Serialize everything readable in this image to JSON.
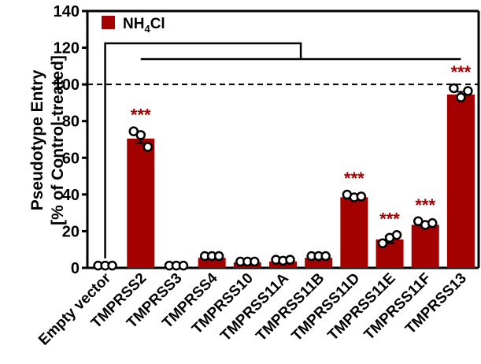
{
  "chart_data": {
    "type": "bar",
    "ylabel_line1": "Pseudotype Entry",
    "ylabel_line2": "[% of Control-treated]",
    "ylim": [
      0,
      140
    ],
    "yticks": [
      "0",
      "20",
      "40",
      "60",
      "80",
      "100",
      "120",
      "140"
    ],
    "legend": {
      "label": "NH",
      "sub": "4",
      "suffix": "Cl",
      "position": "top-left"
    },
    "reference_line": 100,
    "bar_color": "#a30000",
    "significance_color": "#a30000",
    "categories": [
      "Empty vector",
      "TMPRSS2",
      "TMPRSS3",
      "TMPRSS4",
      "TMPRSS10",
      "TMPRSS11A",
      "TMPRSS11B",
      "TMPRSS11D",
      "TMPRSS11E",
      "TMPRSS11F",
      "TMPRSS13"
    ],
    "values": [
      0,
      70.5,
      0,
      5.5,
      3,
      3.5,
      5.5,
      38.5,
      15.5,
      23.5,
      94.5
    ],
    "errors": [
      0,
      2.5,
      0,
      0.5,
      0.3,
      0.5,
      0.5,
      0.8,
      2.0,
      1.0,
      1.5
    ],
    "points": [
      [
        0.8,
        0.8,
        0.8
      ],
      [
        74,
        72,
        65.5
      ],
      [
        0.8,
        0.8,
        0.8
      ],
      [
        6,
        6,
        6
      ],
      [
        3,
        3,
        3
      ],
      [
        4,
        3.5,
        4
      ],
      [
        6,
        6,
        6
      ],
      [
        39.5,
        38,
        38.5
      ],
      [
        13,
        16,
        17.5
      ],
      [
        25,
        23,
        24
      ],
      [
        97.5,
        92.5,
        96
      ]
    ],
    "significance": [
      "",
      "***",
      "",
      "",
      "",
      "",
      "",
      "***",
      "***",
      "***",
      "***"
    ],
    "comparison_bracket": {
      "from": "Empty vector",
      "to_all_others": true
    }
  }
}
